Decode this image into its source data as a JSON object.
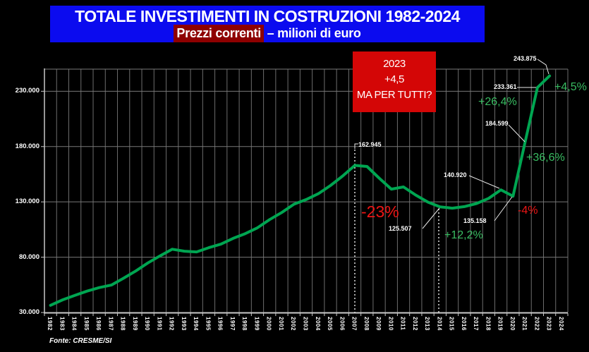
{
  "header": {
    "title": "TOTALE INVESTIMENTI IN COSTRUZIONI 1982-2024",
    "subtitle_highlight": "Prezzi correnti",
    "subtitle_rest": " – milioni di euro",
    "banner_color": "#0b0bef",
    "highlight_color": "#8e0000"
  },
  "callout_box": {
    "lines": [
      "2023",
      "+4,5",
      "MA PER TUTTI?"
    ],
    "bg_color": "#d40606"
  },
  "source": "Fonte: CRESME/SI",
  "chart_data": {
    "type": "line",
    "title": "TOTALE INVESTIMENTI IN COSTRUZIONI 1982-2024",
    "subtitle": "Prezzi correnti – milioni di euro",
    "xlabel": "",
    "ylabel": "milioni di euro",
    "grid": true,
    "categories": [
      "1982",
      "1983",
      "1984",
      "1985",
      "1986",
      "1987",
      "1988",
      "1989",
      "1990",
      "1991",
      "1992",
      "1993",
      "1994",
      "1995",
      "1996",
      "1997",
      "1998",
      "1999",
      "2000",
      "2001",
      "2002",
      "2003",
      "2004",
      "2005",
      "2006",
      "2007",
      "2008",
      "2009",
      "2010",
      "2011",
      "2012",
      "2013",
      "2014",
      "2015",
      "2016",
      "2017",
      "2018",
      "2019",
      "2020",
      "2021",
      "2022",
      "2023",
      "2024"
    ],
    "series": [
      {
        "name": "Totale investimenti in costruzioni",
        "color": "#00a551",
        "values": [
          36500,
          41500,
          45500,
          49300,
          52500,
          54800,
          61000,
          67500,
          74800,
          81200,
          87200,
          85400,
          84800,
          88600,
          91800,
          97000,
          101300,
          106600,
          114000,
          120400,
          127900,
          132100,
          137400,
          144800,
          153400,
          162945,
          162000,
          151500,
          141500,
          143500,
          136200,
          129800,
          125507,
          124300,
          125700,
          128500,
          133200,
          140920,
          135158,
          184599,
          233361,
          243875,
          null
        ]
      }
    ],
    "ylim": [
      30000,
      250000
    ],
    "yticks": [
      {
        "value": 30000,
        "label": "30.000"
      },
      {
        "value": 80000,
        "label": "80.000"
      },
      {
        "value": 130000,
        "label": "130.000"
      },
      {
        "value": 180000,
        "label": "180.000"
      },
      {
        "value": 230000,
        "label": "230.000"
      }
    ],
    "annotations": {
      "value_labels": [
        {
          "text": "162.945",
          "year": "2007",
          "x": 508,
          "y": 200
        },
        {
          "text": "125.507",
          "year": "2014",
          "x": 551,
          "y": 319
        },
        {
          "text": "140.920",
          "year": "2019",
          "x": 629,
          "y": 243
        },
        {
          "text": "135.158",
          "year": "2020",
          "x": 657,
          "y": 308
        },
        {
          "text": "184.599",
          "year": "2021",
          "x": 688,
          "y": 170
        },
        {
          "text": "233.361",
          "year": "2022",
          "x": 700,
          "y": 118
        },
        {
          "text": "243.875",
          "year": "2023",
          "x": 728,
          "y": 78
        }
      ],
      "pct_labels": [
        {
          "text": "-23%",
          "x": 512,
          "y": 287,
          "color": "#ee1515",
          "size": 23
        },
        {
          "text": "+12,2%",
          "x": 630,
          "y": 325,
          "color": "#39bd62",
          "size": 16
        },
        {
          "text": "-4%",
          "x": 734,
          "y": 290,
          "color": "#ee1515",
          "size": 16
        },
        {
          "text": "+36,6%",
          "x": 746,
          "y": 215,
          "color": "#39bd62",
          "size": 16
        },
        {
          "text": "+26,4%",
          "x": 678,
          "y": 136,
          "color": "#39bd62",
          "size": 16
        },
        {
          "text": "+4,5%",
          "x": 786,
          "y": 115,
          "color": "#39bd62",
          "size": 16
        }
      ],
      "leader_lines": [
        [
          [
            503,
            211
          ],
          [
            503,
            204
          ],
          [
            508,
            204
          ]
        ],
        [
          [
            599,
            324
          ],
          [
            623,
            295
          ]
        ],
        [
          [
            665,
            249
          ],
          [
            708,
            267
          ]
        ],
        [
          [
            701,
            313
          ],
          [
            726,
            279
          ]
        ],
        [
          [
            721,
            177
          ],
          [
            744,
            201
          ]
        ],
        [
          [
            733,
            124
          ],
          [
            760,
            124
          ]
        ],
        [
          [
            762,
            84
          ],
          [
            774,
            92
          ],
          [
            778,
            105
          ]
        ]
      ],
      "dashed_lines": [
        {
          "x": 503,
          "y1": 212,
          "y2": 443
        },
        {
          "x": 622,
          "y1": 296,
          "y2": 443
        }
      ]
    }
  }
}
